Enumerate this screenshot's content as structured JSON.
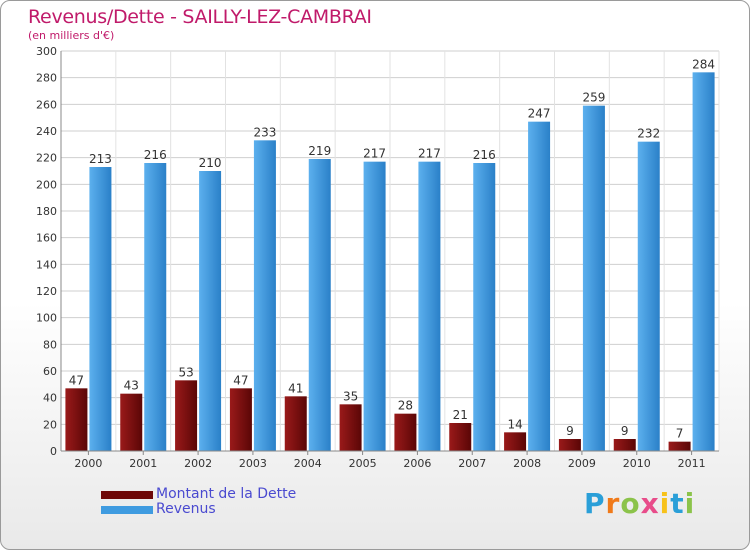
{
  "header": {
    "title": "Revenus/Dette - SAILLY-LEZ-CAMBRAI",
    "subtitle": "(en milliers d'€)"
  },
  "legend": {
    "items": [
      {
        "label": "Montant de la Dette",
        "color": "#7a0a0a"
      },
      {
        "label": "Revenus",
        "color": "#3f9be0"
      }
    ]
  },
  "logo": {
    "text": "Proxiti",
    "colors": [
      "#2a9fd8",
      "#f07a1a",
      "#8bc34a",
      "#e84c8a",
      "#f7c21a",
      "#2a9fd8",
      "#8bc34a"
    ]
  },
  "chart_data": {
    "type": "bar",
    "categories": [
      "2000",
      "2001",
      "2002",
      "2003",
      "2004",
      "2005",
      "2006",
      "2007",
      "2008",
      "2009",
      "2010",
      "2011"
    ],
    "series": [
      {
        "name": "Montant de la Dette",
        "color": "#7a0a0a",
        "values": [
          47,
          43,
          53,
          47,
          41,
          35,
          28,
          21,
          14,
          9,
          9,
          7
        ]
      },
      {
        "name": "Revenus",
        "color": "#3f9be0",
        "values": [
          213,
          216,
          210,
          233,
          219,
          217,
          217,
          216,
          247,
          259,
          232,
          284
        ]
      }
    ],
    "ylim": [
      0,
      300
    ],
    "yticks": [
      0,
      20,
      40,
      60,
      80,
      100,
      120,
      140,
      160,
      180,
      200,
      220,
      240,
      260,
      280,
      300
    ],
    "grid": true
  }
}
